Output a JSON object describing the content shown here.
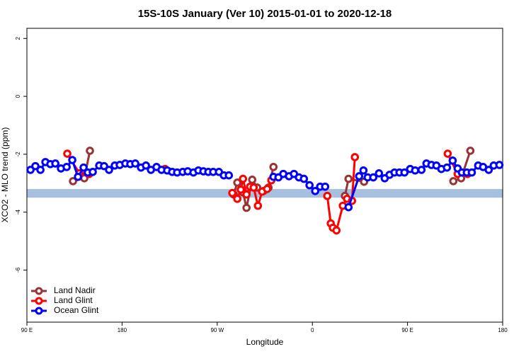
{
  "chart_data": {
    "type": "line",
    "title": "15S-10S January (Ver 10)   2015-01-01 to 2020-12-18",
    "x_label": "Longitude",
    "y_label": "XCO2 - MLO trend (ppm)",
    "xlim": [
      90,
      540
    ],
    "ylim": [
      -7.8,
      2.35
    ],
    "xticks": [
      {
        "value": 90,
        "label": "90 E"
      },
      {
        "value": 180,
        "label": "180"
      },
      {
        "value": 270,
        "label": "90 W"
      },
      {
        "value": 360,
        "label": "0"
      },
      {
        "value": 450,
        "label": "90 E"
      },
      {
        "value": 540,
        "label": "180"
      }
    ],
    "yticks": [
      2,
      0,
      -2,
      -4,
      -6
    ],
    "legend": "bottom-left",
    "band": {
      "low": -3.5,
      "high": -3.2,
      "color": "#a8c0e0"
    },
    "series": [
      {
        "name": "Land Nadir",
        "color": "#993333",
        "x": [
          133.6,
          144.3,
          149.6,
          null,
          285.6,
          289.0,
          294.4,
          297.7,
          303.1,
          307.8,
          313.8,
          318.5,
          323.2,
          null,
          390.8,
          394.2,
          408.9,
          null,
          493.3,
          500.7,
          509.4
        ],
        "values": [
          -2.93,
          -2.83,
          -1.88,
          null,
          -3.39,
          -2.98,
          -3.32,
          -3.85,
          -2.88,
          -3.15,
          -3.27,
          -3.15,
          -2.44,
          null,
          -3.44,
          -2.85,
          -2.95,
          null,
          -2.93,
          -2.83,
          -1.88
        ]
      },
      {
        "name": "Land Glint",
        "color": "#ff0000",
        "x": [
          128.2,
          139.6,
          149.0,
          null,
          220.7,
          null,
          284.3,
          289.0,
          292.3,
          294.4,
          297.7,
          301.1,
          304.5,
          308.5,
          312.5,
          317.2,
          321.2,
          null,
          374.1,
          377.4,
          379.4,
          382.8,
          388.8,
          392.8,
          397.5,
          400.2,
          null,
          488.0,
          497.4,
          506.8
        ],
        "values": [
          -1.98,
          -2.66,
          -2.68,
          null,
          -2.51,
          null,
          -3.34,
          -3.54,
          -3.22,
          -2.85,
          -3.39,
          -3.12,
          -3.15,
          -3.78,
          -3.29,
          -3.2,
          -2.9,
          null,
          -3.44,
          -4.39,
          -4.54,
          -4.63,
          -3.78,
          -3.54,
          -3.61,
          -2.1,
          null,
          -1.98,
          -2.68,
          -2.68
        ]
      },
      {
        "name": "Ocean Glint",
        "color": "#0000ff",
        "x": [
          93.4,
          98.0,
          102.8,
          107.5,
          112.2,
          116.9,
          122.2,
          127.6,
          132.9,
          138.3,
          143.6,
          147.6,
          152.3,
          158.4,
          163.0,
          167.7,
          173.1,
          177.8,
          183.1,
          187.8,
          192.5,
          197.9,
          202.6,
          207.3,
          212.6,
          217.3,
          222.7,
          227.4,
          232.1,
          237.4,
          242.1,
          247.5,
          252.2,
          256.9,
          261.6,
          266.2,
          271.6,
          276.3,
          281.0,
          null,
          323.2,
          327.9,
          332.5,
          337.9,
          342.6,
          347.3,
          352.0,
          357.3,
          362.7,
          367.4,
          372.1,
          null,
          394.2,
          404.2,
          408.3,
          412.3,
          417.6,
          423.0,
          428.4,
          433.0,
          437.7,
          442.4,
          447.1,
          452.5,
          457.2,
          463.2,
          467.9,
          472.6,
          477.3,
          482.0,
          487.3,
          492.7,
          497.4,
          501.4,
          506.1,
          510.8,
          516.8,
          521.5,
          526.8,
          531.5,
          536.9
        ],
        "values": [
          -2.54,
          -2.41,
          -2.54,
          -2.27,
          -2.34,
          -2.32,
          -2.49,
          -2.44,
          -2.2,
          -2.78,
          -2.46,
          -2.63,
          -2.61,
          -2.39,
          -2.41,
          -2.54,
          -2.39,
          -2.37,
          -2.32,
          -2.34,
          -2.32,
          -2.46,
          -2.39,
          -2.54,
          -2.44,
          -2.54,
          -2.56,
          -2.61,
          -2.63,
          -2.61,
          -2.59,
          -2.63,
          -2.56,
          -2.59,
          -2.61,
          -2.61,
          -2.61,
          -2.73,
          -2.73,
          null,
          -2.78,
          -2.8,
          -2.68,
          -2.76,
          -2.68,
          -2.8,
          -2.85,
          -3.07,
          -3.27,
          -3.12,
          -3.12,
          null,
          -3.83,
          -2.76,
          -2.56,
          -2.8,
          -2.8,
          -2.66,
          -2.83,
          -2.71,
          -2.63,
          -2.63,
          -2.63,
          -2.51,
          -2.56,
          -2.54,
          -2.32,
          -2.37,
          -2.39,
          -2.51,
          -2.46,
          -2.22,
          -2.49,
          -2.63,
          -2.63,
          -2.63,
          -2.39,
          -2.44,
          -2.54,
          -2.39,
          -2.37
        ]
      }
    ]
  }
}
